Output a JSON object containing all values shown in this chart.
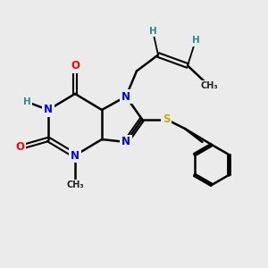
{
  "bg_color": "#ebebeb",
  "atom_colors": {
    "C": "#000000",
    "N": "#0000ff",
    "O": "#ff0000",
    "S": "#ccaa00",
    "H": "#2e8b8b"
  },
  "bond_color": "#000000",
  "bond_width": 1.8,
  "figsize": [
    3.0,
    3.0
  ],
  "dpi": 100
}
